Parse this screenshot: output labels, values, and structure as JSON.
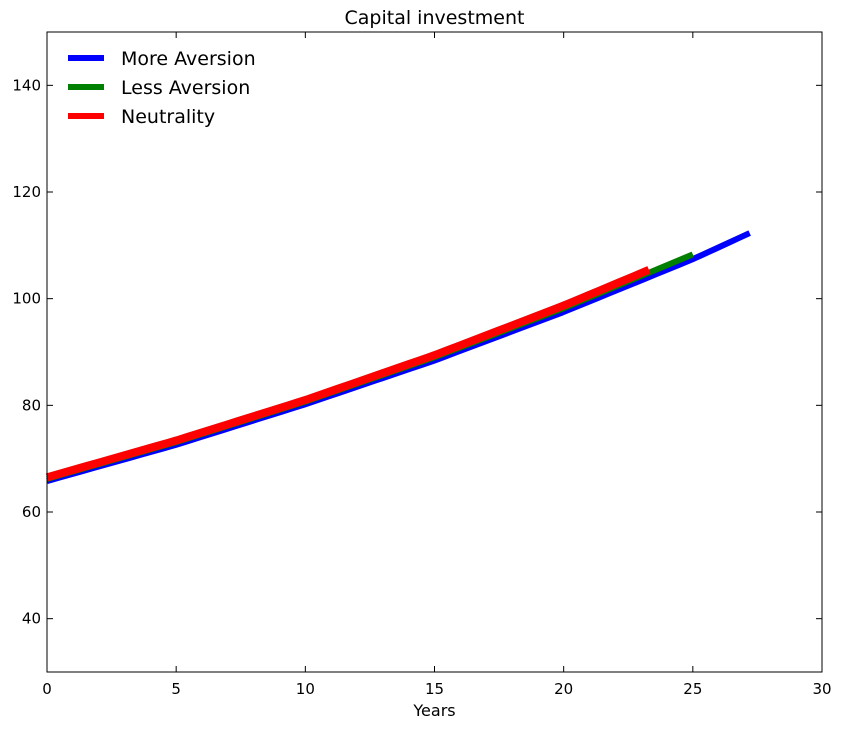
{
  "chart_data": {
    "type": "line",
    "title": "Capital investment",
    "xlabel": "Years",
    "ylabel": "",
    "xlim": [
      0,
      30
    ],
    "ylim": [
      30,
      150
    ],
    "xticks": [
      0,
      5,
      10,
      15,
      20,
      25,
      30
    ],
    "yticks": [
      40,
      60,
      80,
      100,
      120,
      140
    ],
    "grid": false,
    "legend_position": "upper-left",
    "series": [
      {
        "name": "More Aversion",
        "color": "#0000ff",
        "x": [
          0,
          5,
          10,
          15,
          20,
          25,
          27.2
        ],
        "y": [
          65.8,
          72.6,
          80.2,
          88.4,
          97.5,
          107.4,
          112.3
        ]
      },
      {
        "name": "Less Aversion",
        "color": "#008000",
        "x": [
          0,
          5,
          10,
          15,
          20,
          25
        ],
        "y": [
          66.2,
          73.1,
          80.7,
          89.0,
          98.2,
          108.3
        ]
      },
      {
        "name": "Neutrality",
        "color": "#ff0000",
        "x": [
          0,
          5,
          10,
          15,
          20,
          23.3
        ],
        "y": [
          66.5,
          73.4,
          81.0,
          89.4,
          98.7,
          105.4
        ]
      }
    ]
  }
}
